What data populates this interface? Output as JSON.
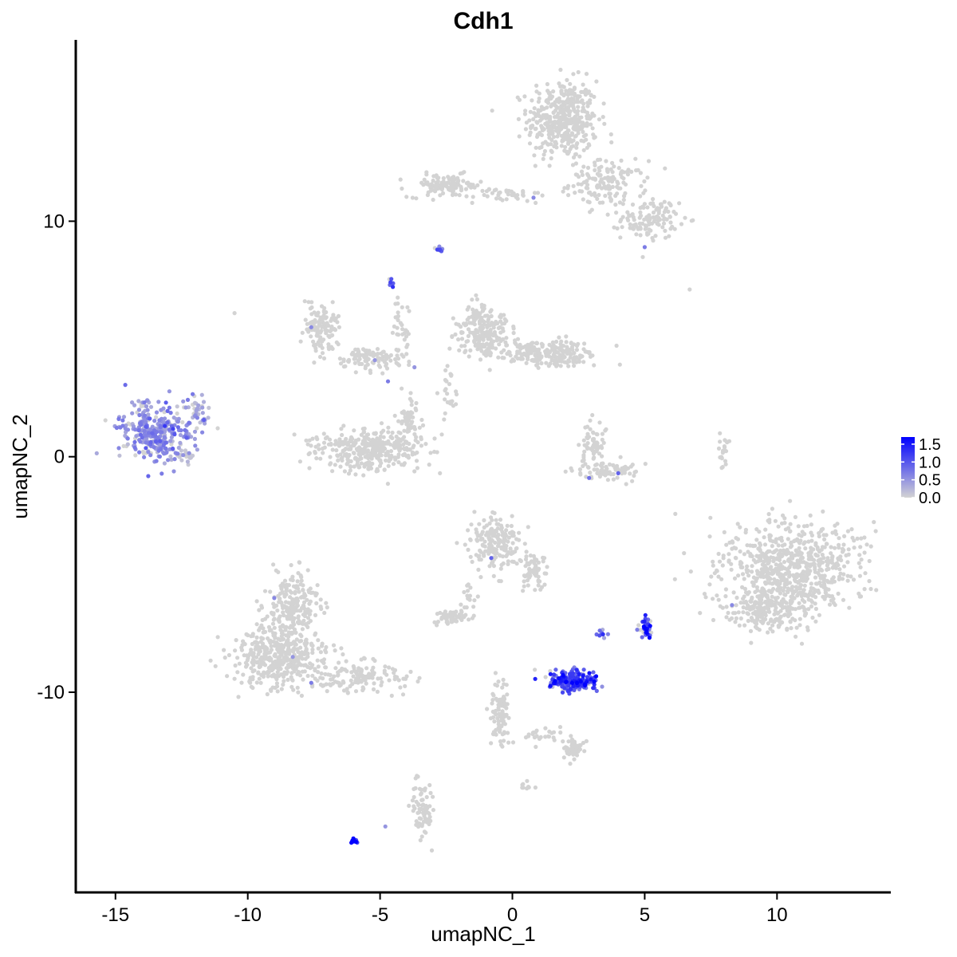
{
  "chart_data": {
    "type": "scatter",
    "title": "Cdh1",
    "xlabel": "umapNC_1",
    "ylabel": "umapNC_2",
    "xlim": [
      -16.5,
      14.3
    ],
    "ylim": [
      -18.5,
      17.7
    ],
    "x_ticks": [
      -15,
      -10,
      -5,
      0,
      5,
      10
    ],
    "x_tick_labels": [
      "-15",
      "-10",
      "-5",
      "0",
      "5",
      "10"
    ],
    "y_ticks": [
      -10,
      0,
      10
    ],
    "y_tick_labels": [
      "-10",
      "0",
      "10"
    ],
    "grid": false,
    "legend_position": "right",
    "color_scale": {
      "low": "#d3d3d3",
      "high": "#0000ff",
      "min": 0,
      "max": 1.7,
      "ticks": [
        0.0,
        0.5,
        1.0,
        1.5
      ],
      "tick_labels": [
        "0.0",
        "0.5",
        "1.0",
        "1.5"
      ]
    },
    "clusters": [
      {
        "cx": 1.9,
        "cy": 14.3,
        "rx": 1.1,
        "ry": 1.4,
        "n": 420,
        "expr": 0
      },
      {
        "cx": 3.6,
        "cy": 11.6,
        "rx": 1.2,
        "ry": 0.8,
        "n": 140,
        "expr": 0
      },
      {
        "cx": 5.2,
        "cy": 10.1,
        "rx": 0.9,
        "ry": 0.7,
        "n": 120,
        "expr": 0
      },
      {
        "cx": -2.5,
        "cy": 11.5,
        "rx": 1.2,
        "ry": 0.4,
        "n": 110,
        "expr": 0
      },
      {
        "cx": -0.2,
        "cy": 11.1,
        "rx": 1.0,
        "ry": 0.25,
        "n": 35,
        "expr": 0
      },
      {
        "cx": -2.7,
        "cy": 8.8,
        "rx": 0.15,
        "ry": 0.1,
        "n": 10,
        "expr": 0.9
      },
      {
        "cx": -4.6,
        "cy": 7.4,
        "rx": 0.15,
        "ry": 0.25,
        "n": 8,
        "expr": 0.9
      },
      {
        "cx": -7.2,
        "cy": 5.5,
        "rx": 0.6,
        "ry": 0.8,
        "n": 130,
        "expr": 0
      },
      {
        "cx": -5.5,
        "cy": 4.2,
        "rx": 0.9,
        "ry": 0.45,
        "n": 90,
        "expr": 0
      },
      {
        "cx": -4.2,
        "cy": 5.3,
        "rx": 0.3,
        "ry": 1.5,
        "n": 40,
        "expr": 0
      },
      {
        "cx": -5.3,
        "cy": 0.3,
        "rx": 1.7,
        "ry": 0.75,
        "n": 360,
        "expr": 0
      },
      {
        "cx": -3.9,
        "cy": 1.6,
        "rx": 0.3,
        "ry": 0.8,
        "n": 50,
        "expr": 0
      },
      {
        "cx": -1.1,
        "cy": 5.3,
        "rx": 0.8,
        "ry": 0.9,
        "n": 220,
        "expr": 0
      },
      {
        "cx": 1.3,
        "cy": 4.4,
        "rx": 1.6,
        "ry": 0.45,
        "n": 230,
        "expr": 0
      },
      {
        "cx": -2.4,
        "cy": 2.6,
        "rx": 0.25,
        "ry": 0.9,
        "n": 25,
        "expr": 0
      },
      {
        "cx": 3.1,
        "cy": 0.6,
        "rx": 0.4,
        "ry": 0.8,
        "n": 60,
        "expr": 0
      },
      {
        "cx": 3.6,
        "cy": -0.6,
        "rx": 1.0,
        "ry": 0.35,
        "n": 85,
        "expr": 0
      },
      {
        "cx": 8.0,
        "cy": 0.2,
        "rx": 0.15,
        "ry": 0.7,
        "n": 20,
        "expr": 0
      },
      {
        "cx": -13.5,
        "cy": 1.1,
        "rx": 1.3,
        "ry": 1.0,
        "n": 340,
        "expr": 0.55
      },
      {
        "cx": -11.9,
        "cy": 2.0,
        "rx": 0.35,
        "ry": 0.5,
        "n": 25,
        "expr": 0.3
      },
      {
        "cx": -12.3,
        "cy": 0.0,
        "rx": 0.3,
        "ry": 0.2,
        "n": 20,
        "expr": 0.1
      },
      {
        "cx": 10.5,
        "cy": -4.8,
        "rx": 2.2,
        "ry": 1.7,
        "n": 720,
        "expr": 0
      },
      {
        "cx": 9.5,
        "cy": -6.5,
        "rx": 1.2,
        "ry": 0.7,
        "n": 160,
        "expr": 0
      },
      {
        "cx": -0.6,
        "cy": -3.7,
        "rx": 0.8,
        "ry": 0.9,
        "n": 180,
        "expr": 0
      },
      {
        "cx": 0.8,
        "cy": -4.9,
        "rx": 0.35,
        "ry": 0.8,
        "n": 60,
        "expr": 0
      },
      {
        "cx": -2.3,
        "cy": -6.8,
        "rx": 0.55,
        "ry": 0.22,
        "n": 55,
        "expr": 0
      },
      {
        "cx": -1.7,
        "cy": -5.9,
        "rx": 0.25,
        "ry": 0.6,
        "n": 18,
        "expr": 0
      },
      {
        "cx": -8.8,
        "cy": -8.5,
        "rx": 1.4,
        "ry": 1.1,
        "n": 420,
        "expr": 0
      },
      {
        "cx": -8.3,
        "cy": -6.3,
        "rx": 0.8,
        "ry": 1.2,
        "n": 220,
        "expr": 0
      },
      {
        "cx": -5.8,
        "cy": -9.3,
        "rx": 1.6,
        "ry": 0.55,
        "n": 140,
        "expr": 0
      },
      {
        "cx": 2.3,
        "cy": -9.5,
        "rx": 0.75,
        "ry": 0.35,
        "n": 220,
        "expr": 1.05
      },
      {
        "cx": 5.0,
        "cy": -7.3,
        "rx": 0.22,
        "ry": 0.35,
        "n": 40,
        "expr": 1.2
      },
      {
        "cx": 3.4,
        "cy": -7.6,
        "rx": 0.12,
        "ry": 0.15,
        "n": 10,
        "expr": 0.8
      },
      {
        "cx": -0.5,
        "cy": -10.8,
        "rx": 0.3,
        "ry": 1.2,
        "n": 90,
        "expr": 0
      },
      {
        "cx": 2.3,
        "cy": -12.4,
        "rx": 0.35,
        "ry": 0.35,
        "n": 50,
        "expr": 0
      },
      {
        "cx": 1.2,
        "cy": -11.8,
        "rx": 0.7,
        "ry": 0.3,
        "n": 25,
        "expr": 0
      },
      {
        "cx": -3.4,
        "cy": -15.0,
        "rx": 0.35,
        "ry": 1.0,
        "n": 80,
        "expr": 0
      },
      {
        "cx": 0.6,
        "cy": -14.0,
        "rx": 0.2,
        "ry": 0.15,
        "n": 10,
        "expr": 0
      },
      {
        "cx": -6.0,
        "cy": -16.3,
        "rx": 0.15,
        "ry": 0.08,
        "n": 12,
        "expr": 1.55
      }
    ],
    "singletons": [
      {
        "x": -10.5,
        "y": 6.1,
        "expr": 0
      },
      {
        "x": 6.7,
        "y": 7.1,
        "expr": 0
      },
      {
        "x": 4.0,
        "y": -0.7,
        "expr": 0.9
      },
      {
        "x": 2.9,
        "y": -0.9,
        "expr": 0.8
      },
      {
        "x": -0.8,
        "y": -4.3,
        "expr": 0.9
      },
      {
        "x": -9.0,
        "y": -6.0,
        "expr": 0.6
      },
      {
        "x": -8.3,
        "y": -8.5,
        "expr": 0.5
      },
      {
        "x": -7.6,
        "y": -9.6,
        "expr": 0.7
      },
      {
        "x": -7.6,
        "y": 5.5,
        "expr": 0.6
      },
      {
        "x": -5.2,
        "y": 4.1,
        "expr": 0.5
      },
      {
        "x": -3.7,
        "y": 3.8,
        "expr": 0.5
      },
      {
        "x": -4.7,
        "y": 3.2,
        "expr": 0.7
      },
      {
        "x": 0.8,
        "y": 11.0,
        "expr": 0.6
      },
      {
        "x": 5.0,
        "y": 8.9,
        "expr": 0.7
      },
      {
        "x": 8.3,
        "y": -6.3,
        "expr": 0.6
      },
      {
        "x": -4.8,
        "y": -15.7,
        "expr": 0.5
      }
    ]
  }
}
